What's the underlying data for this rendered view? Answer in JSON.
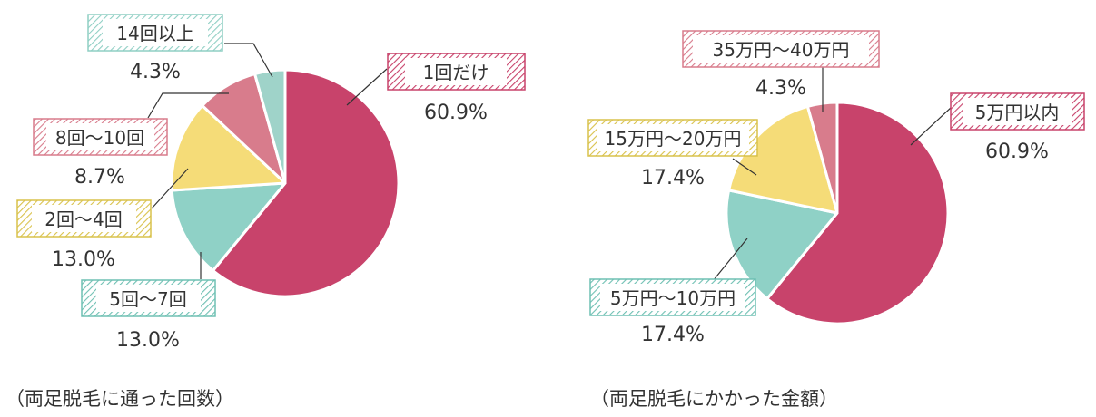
{
  "chart_data": [
    {
      "type": "pie",
      "caption": "（両足脱毛に通った回数）",
      "slices": [
        {
          "label": "1回だけ",
          "value": 60.9,
          "value_label": "60.9%",
          "color": "#c8436b"
        },
        {
          "label": "5回～7回",
          "value": 13.0,
          "value_label": "13.0%",
          "color": "#8fd1c6"
        },
        {
          "label": "2回～4回",
          "value": 13.0,
          "value_label": "13.0%",
          "color": "#f5dc78"
        },
        {
          "label": "8回～10回",
          "value": 8.7,
          "value_label": "8.7%",
          "color": "#d87c8c"
        },
        {
          "label": "14回以上",
          "value": 4.3,
          "value_label": "4.3%",
          "color": "#9fd3c9"
        }
      ]
    },
    {
      "type": "pie",
      "caption": "（両足脱毛にかかった金額）",
      "slices": [
        {
          "label": "5万円以内",
          "value": 60.9,
          "value_label": "60.9%",
          "color": "#c8436b"
        },
        {
          "label": "5万円～10万円",
          "value": 17.4,
          "value_label": "17.4%",
          "color": "#8fd1c6"
        },
        {
          "label": "15万円～20万円",
          "value": 17.4,
          "value_label": "17.4%",
          "color": "#f5dc78"
        },
        {
          "label": "35万円～40万円",
          "value": 4.3,
          "value_label": "4.3%",
          "color": "#d87c8c"
        }
      ]
    }
  ]
}
